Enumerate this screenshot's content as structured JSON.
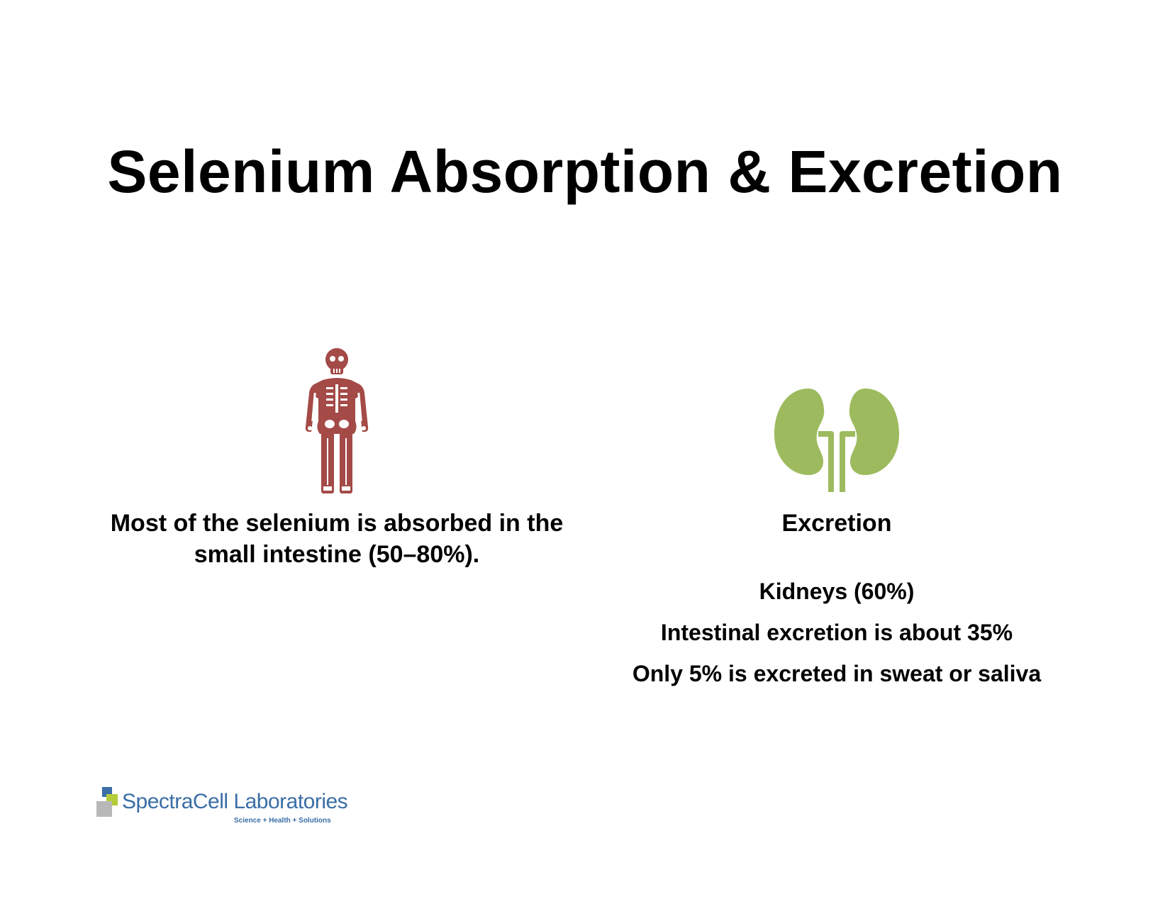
{
  "slide": {
    "title": "Selenium Absorption & Excretion"
  },
  "absorption": {
    "icon": "skeleton-icon",
    "icon_color": "#a44a47",
    "text": "Most of the selenium is absorbed in the small intestine (50–80%)."
  },
  "excretion": {
    "icon": "kidneys-icon",
    "icon_color": "#9dbb5e",
    "heading": "Excretion",
    "items": [
      "Kidneys (60%)",
      "Intestinal excretion is about 35%",
      "Only 5% is excreted in sweat or saliva"
    ]
  },
  "logo": {
    "name": "SpectraCell Laboratories",
    "tagline": "Science + Health + Solutions",
    "colors": {
      "blue": "#3a6ea5",
      "green": "#b5cc3a",
      "gray": "#b8b8b8"
    }
  }
}
